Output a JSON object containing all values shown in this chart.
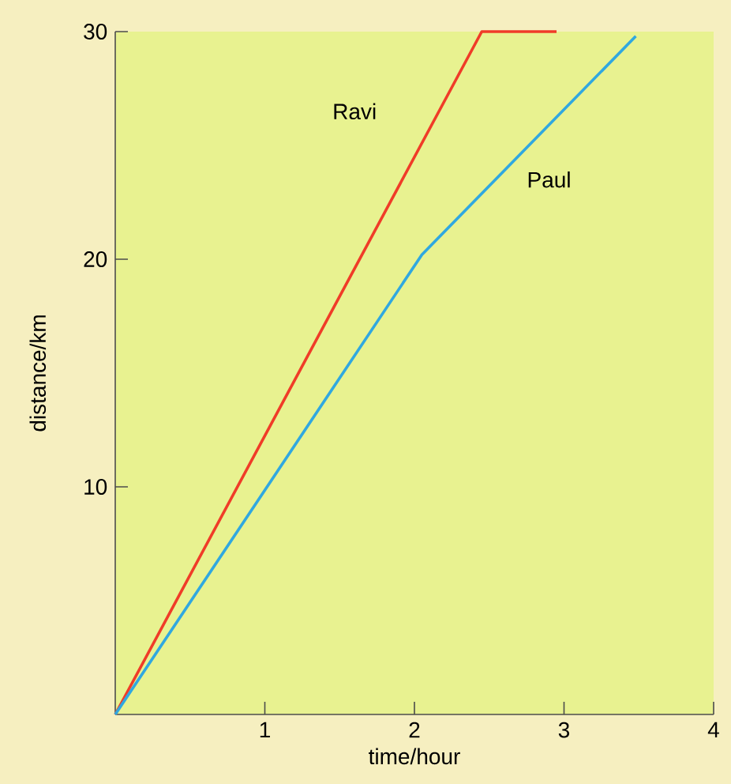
{
  "chart_data": {
    "type": "line",
    "xlabel": "time/hour",
    "ylabel": "distance/km",
    "series": [
      {
        "name": "Ravi",
        "color": "#f03c28",
        "x": [
          0,
          2.45,
          2.95
        ],
        "values": [
          0,
          30,
          30
        ]
      },
      {
        "name": "Paul",
        "color": "#30a8e0",
        "x": [
          0,
          2.05,
          3.48
        ],
        "values": [
          0,
          20.2,
          29.8
        ]
      }
    ],
    "xlim": [
      0,
      4
    ],
    "ylim": [
      0,
      30
    ],
    "xticks": [
      1,
      2,
      3,
      4
    ],
    "yticks": [
      10,
      20,
      30
    ],
    "grid": false,
    "marker": "none",
    "line_style": "solid"
  }
}
